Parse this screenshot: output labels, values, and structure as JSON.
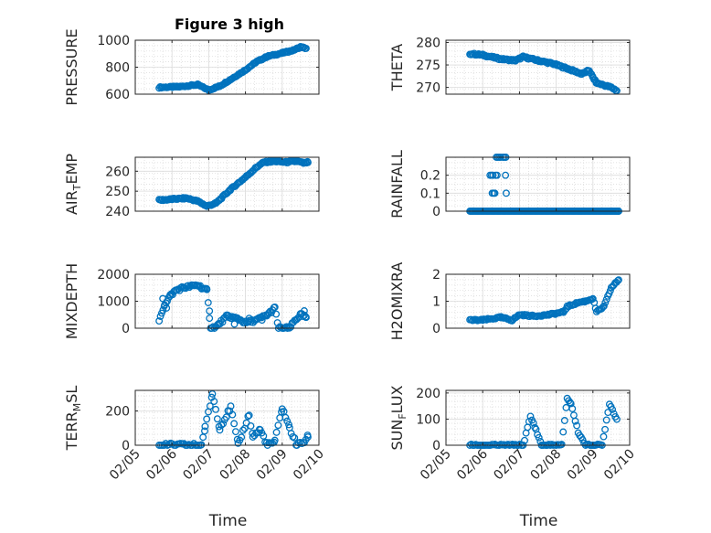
{
  "figure_title": "Figure 3 high",
  "chart_data": [
    {
      "type": "scatter",
      "id": "pressure",
      "ylabel": "PRESSURE",
      "ylim": [
        600,
        1000
      ],
      "yticks": [
        600,
        800,
        1000
      ],
      "yticklabels": [
        "600",
        "800",
        "1000"
      ],
      "xlim": [
        0,
        5
      ],
      "xticks": [
        0,
        1,
        2,
        3,
        4,
        5
      ],
      "xlabel": "",
      "grid": true,
      "x": [
        0.65,
        1.2,
        1.7,
        2.0,
        2.3,
        2.6,
        3.0,
        3.3,
        3.6,
        4.0,
        4.3,
        4.5,
        4.65
      ],
      "y": [
        650,
        655,
        670,
        630,
        660,
        710,
        780,
        840,
        880,
        905,
        925,
        950,
        940
      ],
      "step": 0.03,
      "jitter": 5
    },
    {
      "type": "scatter",
      "id": "theta",
      "ylabel": "THETA",
      "ylim": [
        268.5,
        280.5
      ],
      "yticks": [
        270,
        275,
        280
      ],
      "yticklabels": [
        "270",
        "275",
        "280"
      ],
      "xlim": [
        0,
        5
      ],
      "xticks": [
        0,
        1,
        2,
        3,
        4,
        5
      ],
      "xlabel": "",
      "grid": true,
      "x": [
        0.65,
        1.0,
        1.5,
        1.9,
        2.1,
        2.5,
        2.9,
        3.3,
        3.7,
        3.9,
        4.0,
        4.1,
        4.3,
        4.5,
        4.65
      ],
      "y": [
        277.5,
        277.2,
        276.3,
        276.0,
        276.8,
        276.0,
        275.3,
        274.2,
        273.0,
        273.8,
        272.2,
        271.0,
        270.5,
        270.0,
        269.3
      ],
      "step": 0.03,
      "jitter": 0.2
    },
    {
      "type": "scatter",
      "id": "airtemp",
      "ylabel": "AIR",
      "ylabel_sub": "T",
      "ylabel_tail": "EMP",
      "ylim": [
        240,
        267
      ],
      "yticks": [
        240,
        250,
        260
      ],
      "yticklabels": [
        "240",
        "250",
        "260"
      ],
      "xlim": [
        0,
        5
      ],
      "xticks": [
        0,
        1,
        2,
        3,
        4,
        5
      ],
      "xlabel": "",
      "grid": true,
      "x": [
        0.65,
        1.0,
        1.4,
        1.7,
        1.95,
        2.2,
        2.6,
        3.0,
        3.3,
        3.5,
        3.8,
        4.1,
        4.4,
        4.6,
        4.7
      ],
      "y": [
        245.5,
        246.0,
        246.5,
        245.0,
        242.5,
        244.0,
        251.0,
        257.0,
        262.0,
        264.5,
        265.0,
        264.5,
        265.0,
        264.0,
        264.5
      ],
      "step": 0.03,
      "jitter": 0.4
    },
    {
      "type": "scatter",
      "id": "rainfall",
      "ylabel": "RAINFALL",
      "ylim": [
        0,
        0.3
      ],
      "yticks": [
        0,
        0.1,
        0.2
      ],
      "yticklabels": [
        "0",
        "0.1",
        "0.2"
      ],
      "xlim": [
        0,
        5
      ],
      "xticks": [
        0,
        1,
        2,
        3,
        4,
        5
      ],
      "xlabel": "",
      "grid": true,
      "x": [
        0.65,
        4.7
      ],
      "y": [
        0,
        0
      ],
      "step": 0.03,
      "jitter": 0,
      "extra_points": [
        [
          1.2,
          0.2
        ],
        [
          1.24,
          0.2
        ],
        [
          1.28,
          0.2
        ],
        [
          1.37,
          0.3
        ],
        [
          1.41,
          0.3
        ],
        [
          1.45,
          0.3
        ],
        [
          1.49,
          0.3
        ],
        [
          1.26,
          0.1
        ],
        [
          1.3,
          0.1
        ],
        [
          1.33,
          0.1
        ],
        [
          1.35,
          0.2
        ],
        [
          1.39,
          0.2
        ],
        [
          1.55,
          0.3
        ],
        [
          1.59,
          0.3
        ],
        [
          1.63,
          0.3
        ],
        [
          1.62,
          0.2
        ],
        [
          1.64,
          0.1
        ]
      ]
    },
    {
      "type": "scatter",
      "id": "mixdepth",
      "ylabel": "MIXDEPTH",
      "ylim": [
        0,
        2000
      ],
      "yticks": [
        0,
        1000,
        2000
      ],
      "yticklabels": [
        "0",
        "1000",
        "2000"
      ],
      "xlim": [
        0,
        5
      ],
      "xticks": [
        0,
        1,
        2,
        3,
        4,
        5
      ],
      "xlabel": "",
      "grid": true,
      "x": [
        0.65,
        0.8,
        0.95,
        1.1,
        1.3,
        1.5,
        1.7,
        1.95,
        2.05,
        2.2,
        2.5,
        2.8,
        3.0,
        3.3,
        3.6,
        3.8,
        3.9,
        4.2,
        4.35,
        4.5,
        4.65
      ],
      "y": [
        250,
        900,
        1200,
        1400,
        1500,
        1550,
        1600,
        1400,
        0,
        50,
        450,
        350,
        200,
        300,
        500,
        750,
        0,
        0,
        300,
        500,
        400
      ],
      "step": 0.035,
      "jitter": 60,
      "extra_points": [
        [
          0.75,
          1050
        ],
        [
          0.85,
          700
        ],
        [
          2.02,
          650
        ],
        [
          2.55,
          400
        ],
        [
          2.7,
          200
        ],
        [
          3.1,
          400
        ],
        [
          3.45,
          350
        ],
        [
          4.6,
          650
        ]
      ]
    },
    {
      "type": "scatter",
      "id": "h2omixra",
      "ylabel": "H2OMIXRA",
      "ylim": [
        0,
        2
      ],
      "yticks": [
        0,
        1,
        2
      ],
      "yticklabels": [
        "0",
        "1",
        "2"
      ],
      "xlim": [
        0,
        5
      ],
      "xticks": [
        0,
        1,
        2,
        3,
        4,
        5
      ],
      "xlabel": "",
      "grid": true,
      "x": [
        0.65,
        1.0,
        1.5,
        1.8,
        2.0,
        2.4,
        2.8,
        3.2,
        3.3,
        3.6,
        3.8,
        4.0,
        4.1,
        4.3,
        4.5,
        4.7
      ],
      "y": [
        0.3,
        0.3,
        0.4,
        0.3,
        0.5,
        0.45,
        0.5,
        0.6,
        0.8,
        0.95,
        1.0,
        1.1,
        0.6,
        0.8,
        1.5,
        1.8
      ],
      "step": 0.035,
      "jitter": 0.03
    },
    {
      "type": "scatter",
      "id": "terrmsl",
      "ylabel": "TERR",
      "ylabel_sub": "M",
      "ylabel_tail": "SL",
      "ylim": [
        0,
        320
      ],
      "yticks": [
        0,
        200
      ],
      "yticklabels": [
        "0",
        "200"
      ],
      "xlim": [
        0,
        5
      ],
      "xticks": [
        0,
        1,
        2,
        3,
        4,
        5
      ],
      "xticklabels": [
        "02/05",
        "02/06",
        "02/07",
        "02/08",
        "02/09",
        "02/10"
      ],
      "xlabel": "Time",
      "grid": true,
      "x": [
        0.65,
        1.8,
        1.9,
        2.1,
        2.3,
        2.6,
        2.8,
        3.1,
        3.2,
        3.4,
        3.6,
        3.8,
        4.0,
        4.2,
        4.4,
        4.6,
        4.7
      ],
      "y": [
        0,
        0,
        100,
        300,
        100,
        220,
        0,
        180,
        50,
        90,
        0,
        20,
        220,
        100,
        0,
        20,
        50
      ],
      "step": 0.045,
      "jitter": 12
    },
    {
      "type": "scatter",
      "id": "sunflux",
      "ylabel": "SUN",
      "ylabel_sub": "F",
      "ylabel_tail": "LUX",
      "ylim": [
        0,
        210
      ],
      "yticks": [
        0,
        100,
        200
      ],
      "yticklabels": [
        "0",
        "100",
        "200"
      ],
      "xlim": [
        0,
        5
      ],
      "xticks": [
        0,
        1,
        2,
        3,
        4,
        5
      ],
      "xticklabels": [
        "02/05",
        "02/06",
        "02/07",
        "02/08",
        "02/09",
        "02/10"
      ],
      "xlabel": "Time",
      "grid": true,
      "x": [
        0.65,
        2.1,
        2.3,
        2.45,
        2.6,
        3.15,
        3.3,
        3.4,
        3.6,
        3.8,
        4.05,
        4.25,
        4.45,
        4.65
      ],
      "y": [
        0,
        0,
        110,
        60,
        0,
        0,
        180,
        160,
        50,
        0,
        0,
        0,
        160,
        100
      ],
      "step": 0.04,
      "jitter": 4
    }
  ]
}
